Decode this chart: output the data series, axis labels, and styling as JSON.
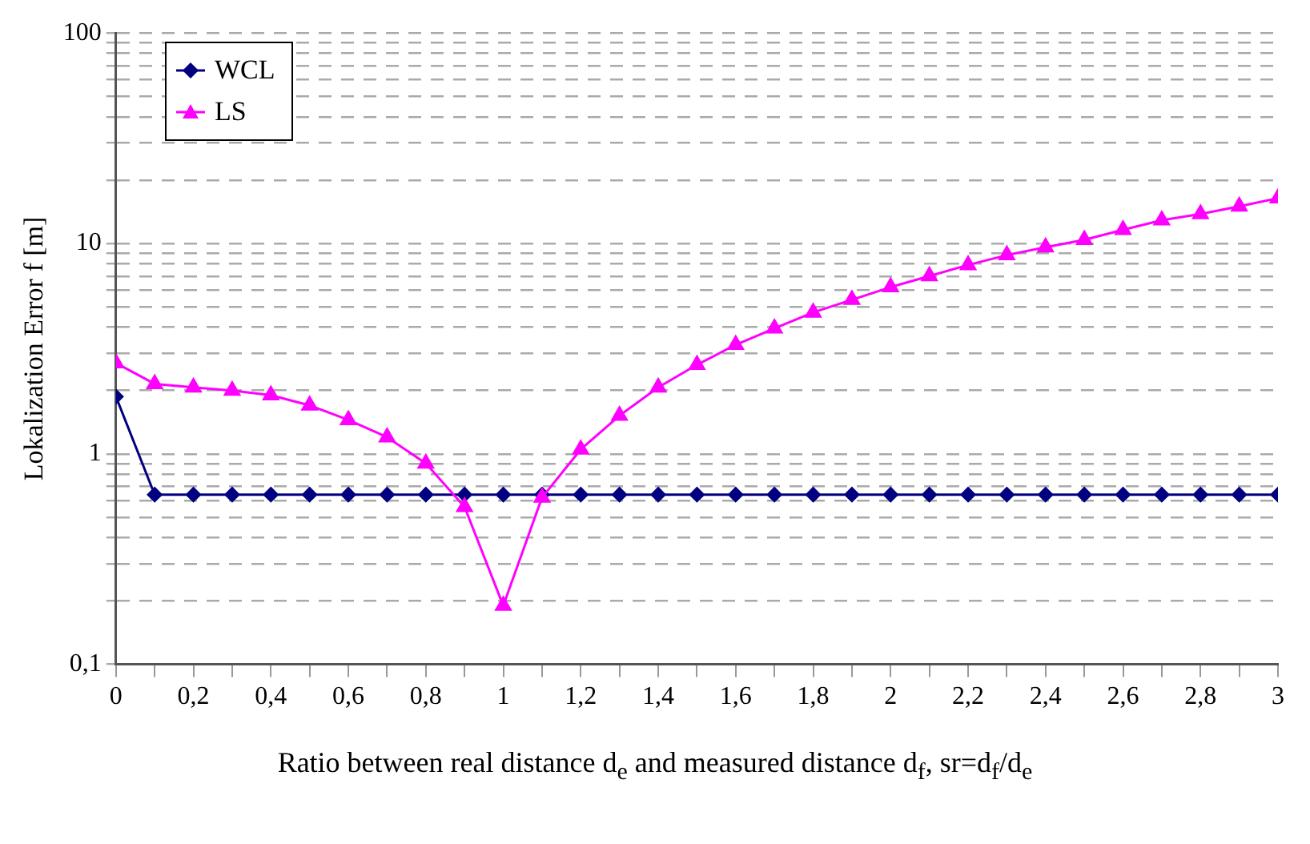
{
  "chart_data": {
    "type": "line",
    "xlabel": "Ratio between real distance d$_{e}$ and measured distance d$_{f}$,  sr=d$_{f}$/d$_{e}$",
    "ylabel": "Lokalization Error f [m]",
    "x": [
      0,
      0.1,
      0.2,
      0.3,
      0.4,
      0.5,
      0.6,
      0.7,
      0.8,
      0.9,
      1,
      1.1,
      1.2,
      1.3,
      1.4,
      1.5,
      1.6,
      1.7,
      1.8,
      1.9,
      2,
      2.1,
      2.2,
      2.3,
      2.4,
      2.5,
      2.6,
      2.7,
      2.8,
      2.9,
      3
    ],
    "series": [
      {
        "name": "WCL",
        "color": "#000080",
        "marker": "diamond",
        "values": [
          1.87,
          0.64,
          0.64,
          0.64,
          0.64,
          0.64,
          0.64,
          0.64,
          0.64,
          0.64,
          0.64,
          0.64,
          0.64,
          0.64,
          0.64,
          0.64,
          0.64,
          0.64,
          0.64,
          0.64,
          0.64,
          0.64,
          0.64,
          0.64,
          0.64,
          0.64,
          0.64,
          0.64,
          0.64,
          0.64,
          0.64
        ]
      },
      {
        "name": "LS",
        "color": "#ff00ff",
        "marker": "triangle",
        "values": [
          2.7,
          2.15,
          2.07,
          2.0,
          1.9,
          1.7,
          1.45,
          1.2,
          0.9,
          0.56,
          0.19,
          0.62,
          1.05,
          1.52,
          2.07,
          2.65,
          3.3,
          3.95,
          4.7,
          5.4,
          6.2,
          7.0,
          7.9,
          8.8,
          9.6,
          10.4,
          11.6,
          12.9,
          13.8,
          15.0,
          16.4
        ]
      }
    ],
    "xlim": [
      0,
      3
    ],
    "xticks": [
      0,
      {
        "value": 0.1,
        "label": null
      },
      {
        "value": 0.2,
        "label": "0,2"
      },
      {
        "value": 0.3,
        "label": null
      },
      {
        "value": 0.4,
        "label": "0,4"
      },
      {
        "value": 0.5,
        "label": null
      },
      {
        "value": 0.6,
        "label": "0,6"
      },
      {
        "value": 0.7,
        "label": null
      },
      {
        "value": 0.8,
        "label": "0,8"
      },
      {
        "value": 0.9,
        "label": null
      },
      1,
      {
        "value": 1.1,
        "label": null
      },
      {
        "value": 1.2,
        "label": "1,2"
      },
      {
        "value": 1.3,
        "label": null
      },
      {
        "value": 1.4,
        "label": "1,4"
      },
      {
        "value": 1.5,
        "label": null
      },
      {
        "value": 1.6,
        "label": "1,6"
      },
      {
        "value": 1.7,
        "label": null
      },
      {
        "value": 1.8,
        "label": "1,8"
      },
      {
        "value": 1.9,
        "label": null
      },
      2,
      {
        "value": 2.1,
        "label": null
      },
      {
        "value": 2.2,
        "label": "2,2"
      },
      {
        "value": 2.3,
        "label": null
      },
      {
        "value": 2.4,
        "label": "2,4"
      },
      {
        "value": 2.5,
        "label": null
      },
      {
        "value": 2.6,
        "label": "2,6"
      },
      {
        "value": 2.7,
        "label": null
      },
      {
        "value": 2.8,
        "label": "2,8"
      },
      {
        "value": 2.9,
        "label": null
      },
      3
    ],
    "ylim": [
      0.1,
      100
    ],
    "yticks": [
      {
        "value": 0.1,
        "label": "0,1"
      },
      {
        "value": 0.2,
        "label": null
      },
      {
        "value": 0.3,
        "label": null
      },
      {
        "value": 0.4,
        "label": null
      },
      {
        "value": 0.5,
        "label": null
      },
      {
        "value": 0.6,
        "label": null
      },
      {
        "value": 0.7,
        "label": null
      },
      {
        "value": 0.8,
        "label": null
      },
      {
        "value": 0.9,
        "label": null
      },
      1,
      {
        "value": 2,
        "label": null
      },
      {
        "value": 3,
        "label": null
      },
      {
        "value": 4,
        "label": null
      },
      {
        "value": 5,
        "label": null
      },
      {
        "value": 6,
        "label": null
      },
      {
        "value": 7,
        "label": null
      },
      {
        "value": 8,
        "label": null
      },
      {
        "value": 9,
        "label": null
      },
      10,
      {
        "value": 20,
        "label": null
      },
      {
        "value": 30,
        "label": null
      },
      {
        "value": 40,
        "label": null
      },
      {
        "value": 50,
        "label": null
      },
      {
        "value": 60,
        "label": null
      },
      {
        "value": 70,
        "label": null
      },
      {
        "value": 80,
        "label": null
      },
      {
        "value": 90,
        "label": null
      },
      100
    ],
    "log": "y",
    "grid": "y",
    "line_style": "solid",
    "legend": "top left"
  }
}
